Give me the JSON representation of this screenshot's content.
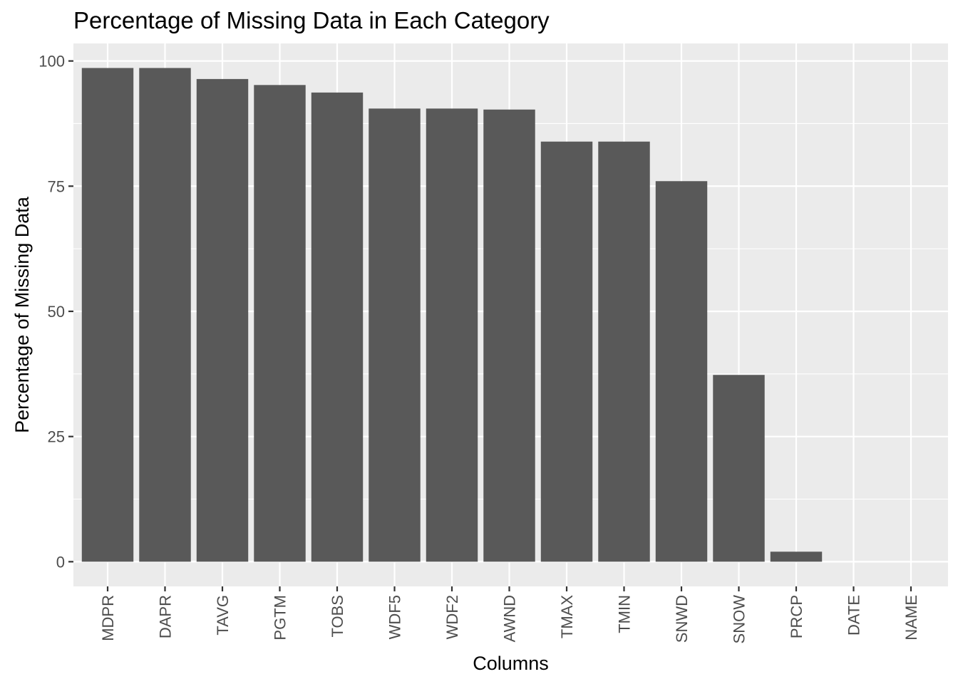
{
  "chart_data": {
    "type": "bar",
    "title": "Percentage of Missing Data in Each Category",
    "xlabel": "Columns",
    "ylabel": "Percentage of Missing Data",
    "categories": [
      "MDPR",
      "DAPR",
      "TAVG",
      "PGTM",
      "TOBS",
      "WDF5",
      "WDF2",
      "AWND",
      "TMAX",
      "TMIN",
      "SNWD",
      "SNOW",
      "PRCP",
      "DATE",
      "NAME"
    ],
    "values": [
      98.6,
      98.6,
      96.4,
      95.2,
      93.7,
      90.5,
      90.5,
      90.3,
      83.9,
      83.9,
      76.0,
      37.3,
      2.0,
      0,
      0
    ],
    "yticks": [
      "0",
      "25",
      "50",
      "75",
      "100"
    ],
    "ylim": [
      -4.93,
      103.5
    ],
    "grid": true,
    "legend": "none",
    "colors": {
      "bar": "#595959",
      "panel": "#ebebeb",
      "grid_major": "#ffffff",
      "grid_minor": "#f5f5f5",
      "axis_text": "#4d4d4d",
      "label_text": "#000000"
    }
  }
}
